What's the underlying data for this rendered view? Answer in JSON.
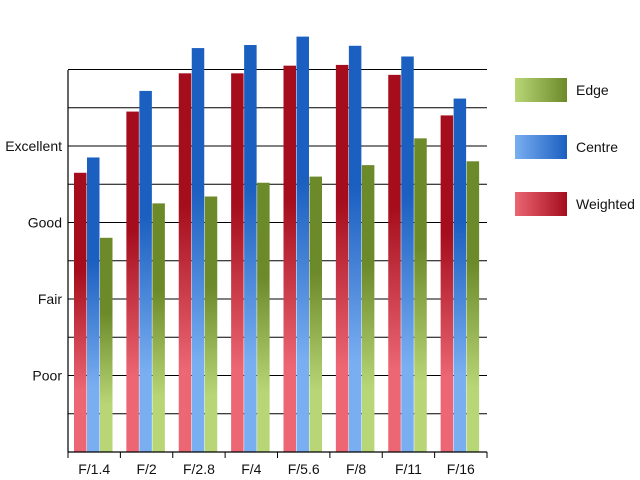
{
  "chart_data": {
    "type": "bar",
    "title": "",
    "xlabel": "",
    "ylabel": "",
    "categories": [
      "F/1.4",
      "F/2",
      "F/2.8",
      "F/4",
      "F/5.6",
      "F/8",
      "F/11",
      "F/16"
    ],
    "y_tick_labels": [
      {
        "value": 1,
        "label": "Poor"
      },
      {
        "value": 2,
        "label": "Fair"
      },
      {
        "value": 3,
        "label": "Good"
      },
      {
        "value": 4,
        "label": "Excellent"
      }
    ],
    "ylim": [
      0,
      5
    ],
    "grid": true,
    "legend_position": "right",
    "series": [
      {
        "name": "Weighted",
        "values": [
          3.65,
          4.45,
          4.95,
          4.95,
          5.05,
          5.06,
          4.93,
          4.4
        ],
        "color_dark": "#a50d1c",
        "color_light": "#ec6673"
      },
      {
        "name": "Centre",
        "values": [
          3.85,
          4.72,
          5.28,
          5.32,
          5.43,
          5.31,
          5.17,
          4.62
        ],
        "color_dark": "#1b5fc0",
        "color_light": "#79aef1"
      },
      {
        "name": "Edge",
        "values": [
          2.8,
          3.25,
          3.34,
          3.52,
          3.6,
          3.75,
          4.1,
          3.8
        ],
        "color_dark": "#6d8a2a",
        "color_light": "#b8d676"
      }
    ],
    "legend_order": [
      "Edge",
      "Centre",
      "Weighted"
    ]
  }
}
